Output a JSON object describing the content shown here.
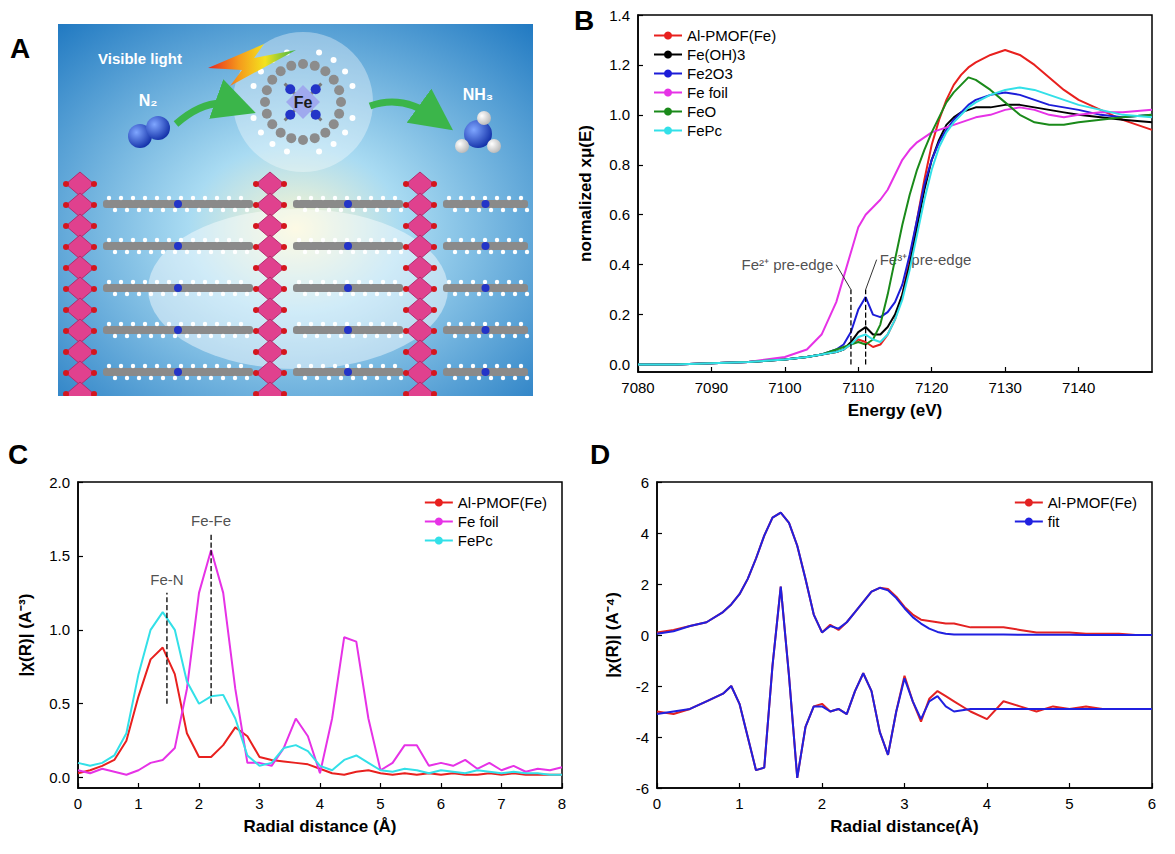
{
  "diagram": {
    "letter": "A",
    "caption": "Visible light",
    "reactant": "N₂",
    "product": "NH₃",
    "metal": "Fe"
  },
  "chart_data": [
    {
      "letter": "B",
      "type": "line",
      "x_label": "Energy (eV)",
      "y_label": "normalized xμ(E)",
      "x": [
        7080,
        7085,
        7090,
        7095,
        7100,
        7103,
        7105,
        7107,
        7108,
        7109,
        7110,
        7111,
        7112,
        7113,
        7114,
        7115,
        7116,
        7117,
        7118,
        7119,
        7120,
        7121,
        7122,
        7123,
        7124,
        7125,
        7126,
        7128,
        7130,
        7132,
        7134,
        7136,
        7138,
        7140,
        7143,
        7146,
        7150
      ],
      "series": [
        {
          "name": "Al-PMOF(Fe)",
          "color": "#e8201e",
          "values": [
            0,
            0,
            0.005,
            0.01,
            0.02,
            0.03,
            0.04,
            0.05,
            0.06,
            0.08,
            0.1,
            0.09,
            0.07,
            0.08,
            0.12,
            0.18,
            0.28,
            0.42,
            0.58,
            0.74,
            0.88,
            0.98,
            1.06,
            1.12,
            1.16,
            1.19,
            1.21,
            1.24,
            1.26,
            1.24,
            1.2,
            1.15,
            1.1,
            1.06,
            1.02,
            0.98,
            0.94
          ]
        },
        {
          "name": "Fe(OH)3",
          "color": "#000000",
          "values": [
            0,
            0,
            0.005,
            0.01,
            0.02,
            0.03,
            0.04,
            0.05,
            0.06,
            0.09,
            0.13,
            0.15,
            0.12,
            0.12,
            0.15,
            0.2,
            0.28,
            0.4,
            0.55,
            0.7,
            0.82,
            0.9,
            0.96,
            0.99,
            1.01,
            1.02,
            1.03,
            1.03,
            1.04,
            1.04,
            1.03,
            1.02,
            1.01,
            1.0,
            0.99,
            0.98,
            0.97
          ]
        },
        {
          "name": "Fe2O3",
          "color": "#1c1cd8",
          "values": [
            0,
            0,
            0.005,
            0.01,
            0.02,
            0.03,
            0.04,
            0.06,
            0.08,
            0.13,
            0.22,
            0.27,
            0.2,
            0.19,
            0.21,
            0.25,
            0.32,
            0.44,
            0.58,
            0.72,
            0.82,
            0.89,
            0.94,
            0.98,
            1.01,
            1.04,
            1.06,
            1.08,
            1.09,
            1.08,
            1.06,
            1.04,
            1.03,
            1.02,
            1.0,
            0.99,
            1.0
          ]
        },
        {
          "name": "Fe foil",
          "color": "#e632e6",
          "values": [
            0,
            0,
            0.005,
            0.01,
            0.03,
            0.06,
            0.12,
            0.25,
            0.35,
            0.45,
            0.55,
            0.6,
            0.63,
            0.66,
            0.7,
            0.76,
            0.82,
            0.86,
            0.89,
            0.91,
            0.93,
            0.94,
            0.95,
            0.96,
            0.97,
            0.98,
            0.99,
            1.0,
            1.02,
            1.03,
            1.02,
            1.0,
            0.99,
            1.0,
            1.01,
            1.01,
            1.02
          ]
        },
        {
          "name": "FeO",
          "color": "#1a8a1a",
          "values": [
            0,
            0,
            0.005,
            0.01,
            0.02,
            0.03,
            0.04,
            0.06,
            0.07,
            0.08,
            0.09,
            0.08,
            0.1,
            0.16,
            0.28,
            0.42,
            0.56,
            0.68,
            0.78,
            0.86,
            0.93,
            0.99,
            1.05,
            1.09,
            1.12,
            1.15,
            1.14,
            1.1,
            1.05,
            1.0,
            0.97,
            0.96,
            0.96,
            0.97,
            0.98,
            0.99,
            1.0
          ]
        },
        {
          "name": "FePc",
          "color": "#33e0e8",
          "values": [
            0,
            0,
            0.005,
            0.01,
            0.02,
            0.03,
            0.04,
            0.05,
            0.06,
            0.08,
            0.11,
            0.12,
            0.1,
            0.09,
            0.12,
            0.18,
            0.26,
            0.38,
            0.52,
            0.66,
            0.78,
            0.87,
            0.93,
            0.97,
            1.0,
            1.03,
            1.05,
            1.08,
            1.1,
            1.11,
            1.1,
            1.08,
            1.06,
            1.04,
            1.02,
            1.0,
            0.99
          ]
        }
      ],
      "xlim": [
        7080,
        7150
      ],
      "xticks": [
        7080,
        7090,
        7100,
        7110,
        7120,
        7130,
        7140
      ],
      "ylim": [
        -0.03,
        1.4
      ],
      "yticks": [
        {
          "value": 0,
          "label": "0.0"
        },
        {
          "value": 0.2,
          "label": "0.2"
        },
        {
          "value": 0.4,
          "label": "0.4"
        },
        {
          "value": 0.6,
          "label": "0.6"
        },
        {
          "value": 0.8,
          "label": "0.8"
        },
        {
          "value": 1,
          "label": "1.0"
        },
        {
          "value": 1.2,
          "label": "1.2"
        },
        {
          "value": 1.4,
          "label": "1.4"
        }
      ],
      "annotations": [
        {
          "text": "Fe²⁺ pre-edge",
          "x": 7107,
          "y": 0.4,
          "arrow_to": [
            7109,
            0.3
          ],
          "dash": [
            [
              7109,
              0
            ],
            [
              7109,
              0.3
            ]
          ]
        },
        {
          "text": "Fe³⁺ pre-edge",
          "x": 7112.5,
          "y": 0.42,
          "arrow_to": [
            7111,
            0.3
          ],
          "dash": [
            [
              7111,
              0
            ],
            [
              7111,
              0.3
            ]
          ]
        }
      ],
      "legend": "upper left",
      "grid": false
    },
    {
      "letter": "C",
      "type": "line",
      "x_label": "Radial distance (Å)",
      "y_label": "|χ(R)| (A⁻³)",
      "x": [
        0,
        0.2,
        0.4,
        0.6,
        0.8,
        1.0,
        1.2,
        1.4,
        1.6,
        1.8,
        2.0,
        2.2,
        2.4,
        2.6,
        2.8,
        3.0,
        3.2,
        3.4,
        3.6,
        3.8,
        4.0,
        4.2,
        4.4,
        4.6,
        4.8,
        5.0,
        5.2,
        5.4,
        5.6,
        5.8,
        6.0,
        6.2,
        6.4,
        6.6,
        6.8,
        7.0,
        7.2,
        7.4,
        7.6,
        7.8,
        8.0
      ],
      "series": [
        {
          "name": "Al-PMOF(Fe)",
          "color": "#e8201e",
          "values": [
            0.03,
            0.05,
            0.08,
            0.12,
            0.25,
            0.55,
            0.8,
            0.88,
            0.7,
            0.3,
            0.14,
            0.14,
            0.22,
            0.34,
            0.28,
            0.14,
            0.12,
            0.11,
            0.1,
            0.09,
            0.06,
            0.03,
            0.02,
            0.04,
            0.05,
            0.03,
            0.02,
            0.03,
            0.02,
            0.03,
            0.02,
            0.03,
            0.02,
            0.02,
            0.03,
            0.02,
            0.03,
            0.02,
            0.02,
            0.02,
            0.02
          ]
        },
        {
          "name": "Fe foil",
          "color": "#e632e6",
          "values": [
            0.05,
            0.03,
            0.06,
            0.04,
            0.02,
            0.05,
            0.1,
            0.12,
            0.2,
            0.6,
            1.25,
            1.54,
            1.25,
            0.6,
            0.1,
            0.1,
            0.08,
            0.2,
            0.4,
            0.28,
            0.03,
            0.4,
            0.95,
            0.92,
            0.4,
            0.05,
            0.1,
            0.22,
            0.22,
            0.08,
            0.1,
            0.08,
            0.12,
            0.06,
            0.1,
            0.05,
            0.08,
            0.04,
            0.06,
            0.05,
            0.07
          ]
        },
        {
          "name": "FePc",
          "color": "#33e0e8",
          "values": [
            0.1,
            0.08,
            0.1,
            0.15,
            0.3,
            0.7,
            1.0,
            1.12,
            1.0,
            0.65,
            0.5,
            0.55,
            0.56,
            0.4,
            0.15,
            0.08,
            0.1,
            0.2,
            0.22,
            0.18,
            0.08,
            0.05,
            0.12,
            0.15,
            0.1,
            0.05,
            0.04,
            0.06,
            0.05,
            0.03,
            0.05,
            0.04,
            0.03,
            0.05,
            0.04,
            0.03,
            0.04,
            0.03,
            0.03,
            0.02,
            0.02
          ]
        }
      ],
      "xlim": [
        0,
        8
      ],
      "xticks": [
        0,
        1,
        2,
        3,
        4,
        5,
        6,
        7,
        8
      ],
      "ylim": [
        -0.07,
        2.0
      ],
      "yticks": [
        {
          "value": 0,
          "label": "0.0"
        },
        {
          "value": 0.5,
          "label": "0.5"
        },
        {
          "value": 1,
          "label": "1.0"
        },
        {
          "value": 1.5,
          "label": "1.5"
        },
        {
          "value": 2,
          "label": "2.0"
        }
      ],
      "annotations": [
        {
          "text": "Fe-N",
          "x": 1.47,
          "y": 1.27,
          "dash": [
            [
              1.47,
              0.5
            ],
            [
              1.47,
              1.25
            ]
          ]
        },
        {
          "text": "Fe-Fe",
          "x": 2.2,
          "y": 1.67,
          "dash": [
            [
              2.2,
              0.5
            ],
            [
              2.2,
              1.65
            ]
          ]
        }
      ],
      "legend": "upper right",
      "grid": false
    },
    {
      "letter": "D",
      "type": "line",
      "x_label": "Radial distance(Å)",
      "y_label": "|χ(R)| (A⁻⁴)",
      "x": [
        0,
        0.2,
        0.4,
        0.6,
        0.8,
        0.9,
        1.0,
        1.1,
        1.2,
        1.3,
        1.4,
        1.5,
        1.6,
        1.7,
        1.8,
        1.9,
        2.0,
        2.1,
        2.2,
        2.3,
        2.4,
        2.5,
        2.6,
        2.7,
        2.8,
        2.9,
        3.0,
        3.1,
        3.2,
        3.3,
        3.4,
        3.5,
        3.6,
        3.8,
        4.0,
        4.2,
        4.4,
        4.6,
        4.8,
        5.0,
        5.2,
        5.4,
        5.6,
        5.8,
        6.0
      ],
      "series": [
        {
          "name": "Al-PMOF(Fe)",
          "color": "#e32222",
          "values": [
            0.1,
            0.2,
            0.35,
            0.5,
            0.9,
            1.2,
            1.6,
            2.2,
            3.0,
            3.9,
            4.6,
            4.8,
            4.4,
            3.5,
            2.2,
            0.8,
            0.1,
            0.4,
            0.2,
            0.5,
            0.9,
            1.3,
            1.7,
            1.85,
            1.8,
            1.5,
            1.1,
            0.8,
            0.6,
            0.55,
            0.5,
            0.45,
            0.45,
            0.3,
            0.3,
            0.3,
            0.2,
            0.1,
            0.1,
            0.1,
            0.05,
            0.05,
            0.05,
            0.0,
            0.0
          ]
        },
        {
          "name": "Al-PMOF(Fe)",
          "color": "#e32222",
          "values": [
            -3.0,
            -3.1,
            -2.9,
            -2.6,
            -2.3,
            -2.0,
            -2.7,
            -4.0,
            -5.3,
            -5.2,
            -1.2,
            1.9,
            -1.6,
            -5.6,
            -3.6,
            -2.8,
            -2.7,
            -3.0,
            -2.9,
            -3.1,
            -2.2,
            -1.5,
            -2.2,
            -3.8,
            -4.7,
            -3.0,
            -1.6,
            -2.6,
            -3.4,
            -2.5,
            -2.2,
            -2.4,
            -2.6,
            -3.0,
            -3.3,
            -2.6,
            -2.8,
            -3.0,
            -2.8,
            -2.9,
            -2.8,
            -2.9,
            -2.9,
            -2.9,
            -2.9
          ]
        },
        {
          "name": "fit",
          "color": "#2020e0",
          "values": [
            0.05,
            0.15,
            0.35,
            0.5,
            0.9,
            1.2,
            1.6,
            2.2,
            3.0,
            3.9,
            4.6,
            4.8,
            4.4,
            3.5,
            2.2,
            0.8,
            0.1,
            0.35,
            0.25,
            0.5,
            0.9,
            1.3,
            1.7,
            1.85,
            1.75,
            1.45,
            1.05,
            0.7,
            0.45,
            0.25,
            0.12,
            0.05,
            0.02,
            0.02,
            0.02,
            0.02,
            0.01,
            0.01,
            0.01,
            0.01,
            0.0,
            0.0,
            0.0,
            0.0,
            0.0
          ]
        },
        {
          "name": "fit",
          "color": "#2020e0",
          "values": [
            -3.1,
            -3.0,
            -2.9,
            -2.6,
            -2.3,
            -2.0,
            -2.7,
            -4.0,
            -5.3,
            -5.2,
            -1.2,
            1.9,
            -1.6,
            -5.6,
            -3.6,
            -2.8,
            -2.8,
            -3.0,
            -2.9,
            -3.1,
            -2.2,
            -1.5,
            -2.2,
            -3.8,
            -4.7,
            -3.0,
            -1.7,
            -2.6,
            -3.3,
            -2.6,
            -2.4,
            -2.8,
            -3.0,
            -2.9,
            -2.9,
            -2.9,
            -2.9,
            -2.9,
            -2.9,
            -2.9,
            -2.9,
            -2.9,
            -2.9,
            -2.9,
            -2.9
          ]
        }
      ],
      "xlim": [
        0,
        6
      ],
      "xticks": [
        0,
        1,
        2,
        3,
        4,
        5,
        6
      ],
      "ylim": [
        -6,
        6
      ],
      "yticks": [
        -6,
        -4,
        -2,
        0,
        2,
        4,
        6
      ],
      "legend": "upper right",
      "grid": false
    }
  ]
}
